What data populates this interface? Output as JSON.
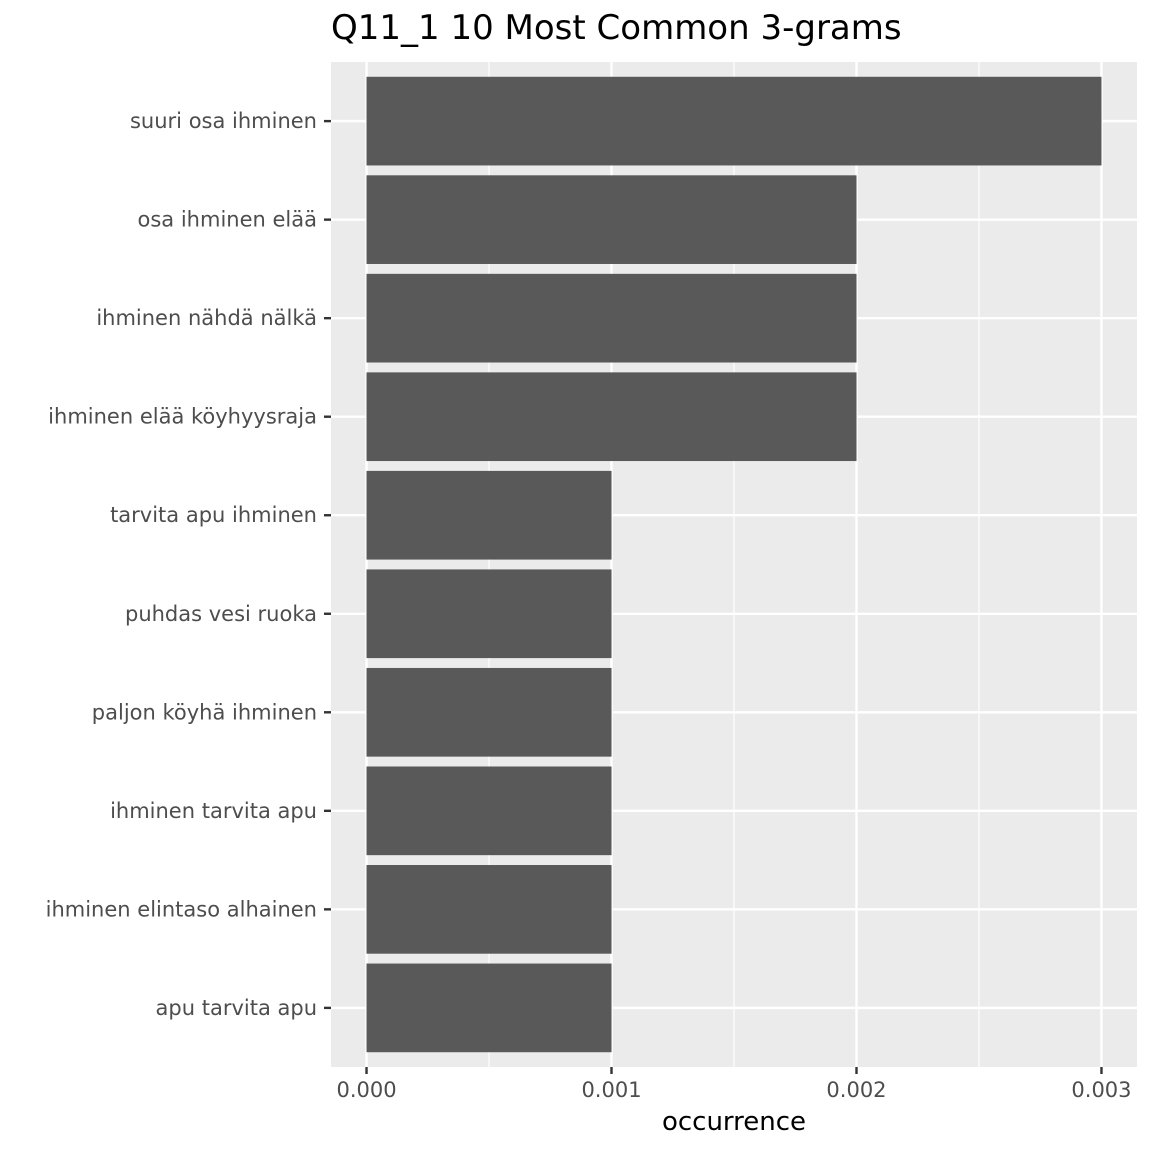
{
  "chart_data": {
    "type": "bar",
    "orientation": "horizontal",
    "title": "Q11_1 10 Most Common 3-grams",
    "xlabel": "occurrence",
    "ylabel": "",
    "xlim": [
      -0.000145,
      0.003145
    ],
    "x_ticks": [
      "0.000",
      "0.001",
      "0.002",
      "0.003"
    ],
    "x_tick_values": [
      0.0,
      0.001,
      0.002,
      0.003
    ],
    "grid": true,
    "colors": {
      "panel": "#ebebeb",
      "grid": "#ffffff",
      "bar": "#595959",
      "axis_text": "#4d4d4d"
    },
    "categories": [
      "suuri osa ihminen",
      "osa ihminen elää",
      "ihminen nähdä nälkä",
      "ihminen elää köyhyysraja",
      "tarvita apu ihminen",
      "puhdas vesi ruoka",
      "paljon köyhä ihminen",
      "ihminen tarvita apu",
      "ihminen elintaso alhainen",
      "apu tarvita apu"
    ],
    "values": [
      0.003,
      0.002,
      0.002,
      0.002,
      0.001,
      0.001,
      0.001,
      0.001,
      0.001,
      0.001
    ]
  }
}
